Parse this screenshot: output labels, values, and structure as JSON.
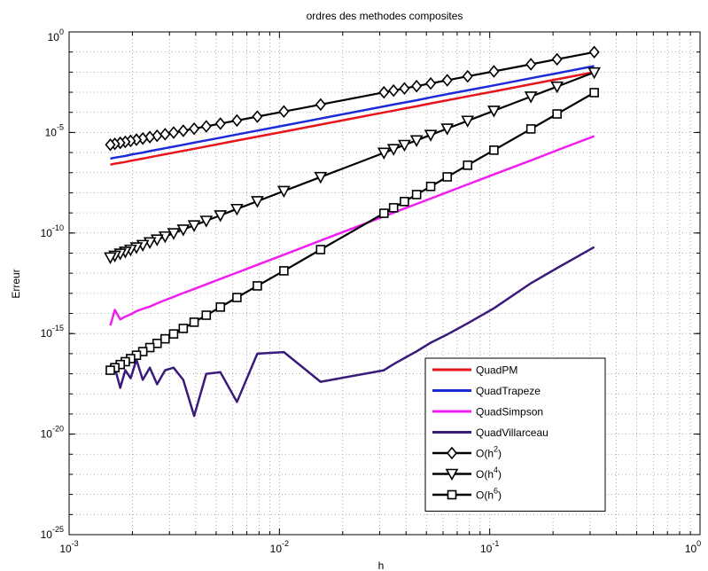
{
  "chart_data": {
    "type": "line",
    "title": "ordres des methodes composites",
    "xlabel": "h",
    "ylabel": "Erreur",
    "xscale": "log",
    "yscale": "log",
    "xlim": [
      0.001,
      1
    ],
    "ylim": [
      1e-25,
      1
    ],
    "grid": true,
    "legend_position": "lower-right",
    "x_ticks": [
      {
        "value": 0.001,
        "base": "10",
        "exp": "-3"
      },
      {
        "value": 0.01,
        "base": "10",
        "exp": "-2"
      },
      {
        "value": 0.1,
        "base": "10",
        "exp": "-1"
      },
      {
        "value": 1,
        "base": "10",
        "exp": "0"
      }
    ],
    "y_ticks": [
      {
        "value": 1e-25,
        "base": "10",
        "exp": "-25"
      },
      {
        "value": 1e-20,
        "base": "10",
        "exp": "-20"
      },
      {
        "value": 1e-15,
        "base": "10",
        "exp": "-15"
      },
      {
        "value": 1e-10,
        "base": "10",
        "exp": "-10"
      },
      {
        "value": 1e-05,
        "base": "10",
        "exp": "-5"
      },
      {
        "value": 1,
        "base": "10",
        "exp": "0"
      }
    ],
    "x": [
      0.314,
      0.209,
      0.157,
      0.1047,
      0.0785,
      0.0628,
      0.0524,
      0.0449,
      0.0393,
      0.0349,
      0.0314,
      0.0157,
      0.0105,
      0.00785,
      0.00628,
      0.00524,
      0.00449,
      0.00393,
      0.00349,
      0.00314,
      0.00286,
      0.00262,
      0.00242,
      0.00224,
      0.00209,
      0.00196,
      0.00185,
      0.00175,
      0.00165,
      0.00157
    ],
    "series": [
      {
        "name": "QuadPM",
        "color": "#e8151b",
        "marker": "none",
        "values": [
          0.01,
          0.0044,
          0.0025,
          0.0011,
          0.00062,
          0.0004,
          0.00028,
          0.0002,
          0.000155,
          0.000122,
          9.9e-05,
          2.47e-05,
          1.1e-05,
          6.2e-06,
          3.95e-06,
          2.75e-06,
          2.02e-06,
          1.55e-06,
          1.22e-06,
          9.9e-07,
          8.2e-07,
          6.9e-07,
          5.9e-07,
          5e-07,
          4.4e-07,
          3.9e-07,
          3.4e-07,
          3.1e-07,
          2.8e-07,
          2.5e-07
        ]
      },
      {
        "name": "QuadTrapeze",
        "color": "#1c2bd8",
        "marker": "none",
        "values": [
          0.02,
          0.0088,
          0.005,
          0.0022,
          0.00124,
          0.0008,
          0.00056,
          0.0004,
          0.00031,
          0.000244,
          0.000198,
          4.94e-05,
          2.2e-05,
          1.24e-05,
          7.9e-06,
          5.5e-06,
          4.04e-06,
          3.1e-06,
          2.44e-06,
          1.98e-06,
          1.64e-06,
          1.38e-06,
          1.18e-06,
          1e-06,
          8.8e-07,
          7.8e-07,
          6.8e-07,
          6.2e-07,
          5.6e-07,
          5e-07
        ]
      },
      {
        "name": "QuadSimpson",
        "color": "#f01ff0",
        "marker": "none",
        "values": [
          6.5e-06,
          1.3e-06,
          4.1e-07,
          8.2e-08,
          2.6e-08,
          1.07e-08,
          5.2e-09,
          2.8e-09,
          1.65e-09,
          1.03e-09,
          6.7e-10,
          4.2e-11,
          8.3e-12,
          2.6e-12,
          1.07e-12,
          5.2e-13,
          2.8e-13,
          1.65e-13,
          1.03e-13,
          6.7e-14,
          4.6e-14,
          3.2e-14,
          2.2e-14,
          1.7e-14,
          1.3e-14,
          9e-15,
          7e-15,
          5e-15,
          1.5e-14,
          2.5e-15
        ]
      },
      {
        "name": "QuadVillarceau",
        "color": "#3a1a7a",
        "marker": "none",
        "values": [
          2e-11,
          1.8e-12,
          3.2e-13,
          1.8e-14,
          3.2e-15,
          9e-16,
          3.5e-16,
          1.3e-16,
          6e-17,
          3e-17,
          1.5e-17,
          4e-18,
          1.2e-16,
          1e-16,
          4e-19,
          1.2e-17,
          1e-17,
          8e-20,
          5e-18,
          2e-17,
          1.5e-17,
          3e-18,
          2e-17,
          5e-18,
          5e-17,
          6e-18,
          1.5e-17,
          2e-18,
          2e-17,
          3e-17
        ]
      },
      {
        "name": "O(h^2)",
        "color": "#000000",
        "marker": "diamond",
        "values": [
          0.0987,
          0.0437,
          0.0246,
          0.01096,
          0.00616,
          0.00394,
          0.00275,
          0.00202,
          0.00154,
          0.00122,
          0.000986,
          0.000246,
          0.00011,
          6.16e-05,
          3.94e-05,
          2.75e-05,
          2.02e-05,
          1.54e-05,
          1.22e-05,
          9.86e-06,
          8.18e-06,
          6.86e-06,
          5.86e-06,
          5.02e-06,
          4.37e-06,
          3.84e-06,
          3.42e-06,
          3.06e-06,
          2.72e-06,
          2.46e-06
        ]
      },
      {
        "name": "O(h^4)",
        "color": "#000000",
        "marker": "triangle-down",
        "values": [
          0.00972,
          0.00191,
          0.000608,
          0.00012,
          3.8e-05,
          1.56e-05,
          7.54e-06,
          4.06e-06,
          2.39e-06,
          1.48e-06,
          9.72e-07,
          6.08e-08,
          1.22e-08,
          3.8e-09,
          1.56e-09,
          7.54e-10,
          4.06e-10,
          2.39e-10,
          1.48e-10,
          9.72e-11,
          6.69e-11,
          4.71e-11,
          3.43e-11,
          2.52e-11,
          1.91e-11,
          1.48e-11,
          1.17e-11,
          9.38e-12,
          7.41e-12,
          6.08e-12
        ]
      },
      {
        "name": "O(h^6)",
        "color": "#000000",
        "marker": "square",
        "values": [
          0.000958,
          8.34e-05,
          1.5e-05,
          1.32e-06,
          2.35e-07,
          6.2e-08,
          2.07e-08,
          8.17e-09,
          3.67e-09,
          1.8e-09,
          9.58e-10,
          1.5e-11,
          1.32e-12,
          2.35e-13,
          6.2e-14,
          2.07e-14,
          8.17e-15,
          3.67e-15,
          1.8e-15,
          9.58e-16,
          5.47e-16,
          3.24e-16,
          2.01e-16,
          1.27e-16,
          8.34e-17,
          5.67e-17,
          3.99e-17,
          2.87e-17,
          2.02e-17,
          1.5e-17
        ]
      }
    ],
    "legend": [
      {
        "label": "QuadPM",
        "color": "#e8151b",
        "marker": "none"
      },
      {
        "label": "QuadTrapeze",
        "color": "#1c2bd8",
        "marker": "none"
      },
      {
        "label": "QuadSimpson",
        "color": "#f01ff0",
        "marker": "none"
      },
      {
        "label": "QuadVillarceau",
        "color": "#3a1a7a",
        "marker": "none"
      },
      {
        "label": "O(h",
        "sup": "2",
        "suffix": ")",
        "color": "#000000",
        "marker": "diamond"
      },
      {
        "label": "O(h",
        "sup": "4",
        "suffix": ")",
        "color": "#000000",
        "marker": "triangle-down"
      },
      {
        "label": "O(h",
        "sup": "6",
        "suffix": ")",
        "color": "#000000",
        "marker": "square"
      }
    ]
  }
}
